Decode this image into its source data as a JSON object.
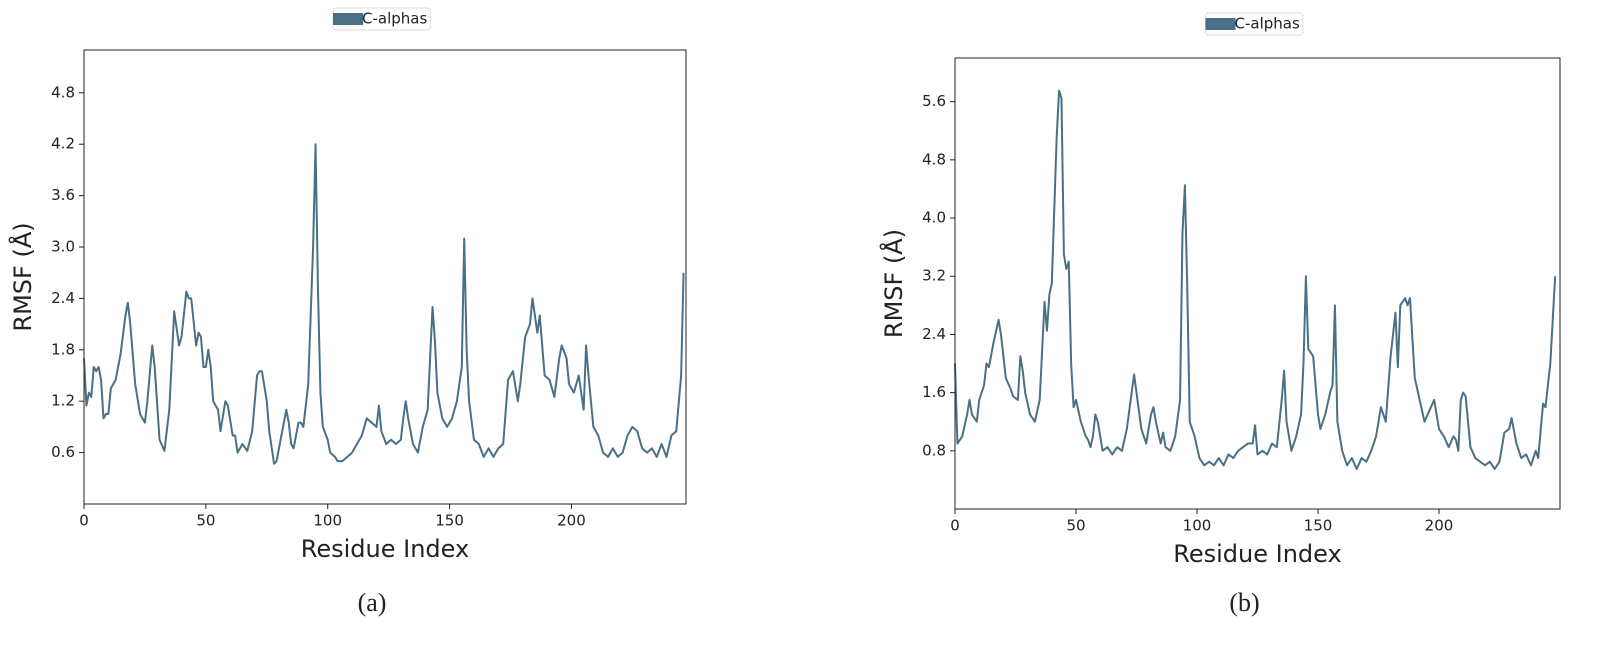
{
  "chart_data": [
    {
      "type": "line",
      "legend": "top",
      "caption": "(a)",
      "x_label": "Residue Index",
      "y_label": "RMSF (Å)",
      "xlim": [
        0,
        247
      ],
      "ylim": [
        0,
        5.3
      ],
      "xticks": [
        0,
        50,
        100,
        150,
        200
      ],
      "yticks": [
        0.6,
        1.2,
        1.8,
        2.4,
        {
          "value": 3,
          "label": "3.0"
        },
        3.6,
        4.2,
        4.8
      ],
      "x": [
        0,
        1,
        2,
        3,
        4,
        5,
        6,
        7,
        8,
        9,
        10,
        11,
        13,
        15,
        17,
        18,
        19,
        21,
        23,
        25,
        26,
        28,
        29,
        31,
        33,
        35,
        37,
        39,
        40,
        42,
        43,
        44,
        46,
        47,
        48,
        49,
        50,
        51,
        52,
        53,
        55,
        56,
        58,
        59,
        61,
        62,
        63,
        65,
        67,
        69,
        71,
        72,
        73,
        75,
        76,
        78,
        79,
        81,
        83,
        84,
        85,
        86,
        88,
        89,
        90,
        92,
        94,
        95,
        96,
        97,
        98,
        100,
        101,
        103,
        104,
        106,
        108,
        110,
        112,
        114,
        116,
        118,
        120,
        121,
        122,
        124,
        126,
        128,
        130,
        131,
        132,
        133,
        135,
        137,
        139,
        141,
        143,
        144,
        145,
        147,
        149,
        151,
        153,
        155,
        156,
        157,
        158,
        160,
        162,
        164,
        166,
        168,
        170,
        172,
        174,
        176,
        178,
        179,
        181,
        183,
        184,
        186,
        187,
        189,
        191,
        193,
        195,
        196,
        198,
        199,
        201,
        203,
        205,
        206,
        207,
        209,
        211,
        213,
        215,
        217,
        219,
        221,
        223,
        225,
        227,
        229,
        231,
        233,
        235,
        237,
        239,
        241,
        243,
        245,
        246
      ],
      "series": [
        {
          "name": "C-alphas",
          "color": "#4a7088",
          "values": [
            1.7,
            1.15,
            1.3,
            1.25,
            1.6,
            1.55,
            1.6,
            1.45,
            1.0,
            1.05,
            1.05,
            1.35,
            1.45,
            1.75,
            2.2,
            2.35,
            2.1,
            1.4,
            1.05,
            0.95,
            1.2,
            1.85,
            1.6,
            0.75,
            0.62,
            1.1,
            2.25,
            1.85,
            1.95,
            2.48,
            2.4,
            2.4,
            1.85,
            2.0,
            1.95,
            1.6,
            1.6,
            1.8,
            1.6,
            1.2,
            1.1,
            0.85,
            1.2,
            1.15,
            0.8,
            0.8,
            0.6,
            0.7,
            0.62,
            0.85,
            1.5,
            1.55,
            1.55,
            1.2,
            0.85,
            0.47,
            0.5,
            0.8,
            1.1,
            0.95,
            0.7,
            0.65,
            0.95,
            0.95,
            0.9,
            1.4,
            3.0,
            4.2,
            2.5,
            1.3,
            0.9,
            0.75,
            0.6,
            0.55,
            0.5,
            0.5,
            0.55,
            0.6,
            0.7,
            0.8,
            1.0,
            0.95,
            0.9,
            1.15,
            0.85,
            0.7,
            0.75,
            0.7,
            0.75,
            1.0,
            1.2,
            1.0,
            0.7,
            0.6,
            0.9,
            1.1,
            2.3,
            1.9,
            1.3,
            1.0,
            0.9,
            1.0,
            1.2,
            1.6,
            3.1,
            1.8,
            1.2,
            0.75,
            0.7,
            0.55,
            0.65,
            0.55,
            0.65,
            0.7,
            1.45,
            1.55,
            1.2,
            1.4,
            1.95,
            2.1,
            2.4,
            2.0,
            2.2,
            1.5,
            1.45,
            1.25,
            1.7,
            1.85,
            1.7,
            1.4,
            1.3,
            1.5,
            1.1,
            1.85,
            1.5,
            0.9,
            0.8,
            0.6,
            0.55,
            0.65,
            0.55,
            0.6,
            0.8,
            0.9,
            0.85,
            0.65,
            0.6,
            0.65,
            0.55,
            0.7,
            0.55,
            0.8,
            0.85,
            1.5,
            2.7
          ]
        }
      ]
    },
    {
      "type": "line",
      "legend": "top",
      "caption": "(b)",
      "x_label": "Residue Index",
      "y_label": "RMSF (Å)",
      "xlim": [
        0,
        250
      ],
      "ylim": [
        0,
        6.2
      ],
      "xticks": [
        0,
        50,
        100,
        150,
        200
      ],
      "yticks": [
        0.8,
        1.6,
        2.4,
        3.2,
        {
          "value": 4,
          "label": "4.0"
        },
        4.8,
        5.6
      ],
      "x": [
        0,
        1,
        3,
        5,
        6,
        7,
        9,
        10,
        12,
        13,
        14,
        16,
        18,
        19,
        21,
        23,
        24,
        26,
        27,
        28,
        29,
        31,
        33,
        35,
        37,
        38,
        39,
        40,
        42,
        43,
        44,
        45,
        46,
        47,
        48,
        49,
        50,
        52,
        54,
        55,
        56,
        57,
        58,
        59,
        61,
        63,
        65,
        67,
        69,
        71,
        73,
        74,
        75,
        77,
        79,
        81,
        82,
        83,
        85,
        86,
        87,
        89,
        91,
        93,
        94,
        95,
        96,
        97,
        99,
        101,
        103,
        105,
        107,
        109,
        111,
        113,
        115,
        117,
        119,
        121,
        123,
        124,
        125,
        127,
        129,
        131,
        133,
        135,
        136,
        137,
        139,
        141,
        143,
        144,
        145,
        146,
        148,
        150,
        151,
        153,
        155,
        156,
        157,
        158,
        160,
        162,
        164,
        166,
        168,
        170,
        172,
        174,
        176,
        178,
        180,
        182,
        183,
        184,
        186,
        187,
        188,
        190,
        192,
        194,
        196,
        198,
        200,
        202,
        204,
        206,
        207,
        208,
        209,
        210,
        211,
        213,
        215,
        217,
        219,
        221,
        223,
        225,
        227,
        229,
        230,
        232,
        234,
        236,
        238,
        240,
        241,
        243,
        244,
        246,
        248
      ],
      "series": [
        {
          "name": "C-alphas",
          "color": "#4a7088",
          "values": [
            2.0,
            0.9,
            1.0,
            1.3,
            1.5,
            1.3,
            1.2,
            1.5,
            1.7,
            2.0,
            1.95,
            2.3,
            2.6,
            2.4,
            1.8,
            1.65,
            1.55,
            1.5,
            2.1,
            1.9,
            1.6,
            1.3,
            1.2,
            1.5,
            2.85,
            2.45,
            2.95,
            3.1,
            5.1,
            5.75,
            5.65,
            3.5,
            3.3,
            3.4,
            2.0,
            1.4,
            1.5,
            1.2,
            1.0,
            0.95,
            0.85,
            1.0,
            1.3,
            1.2,
            0.8,
            0.85,
            0.75,
            0.85,
            0.8,
            1.1,
            1.6,
            1.85,
            1.6,
            1.1,
            0.9,
            1.3,
            1.4,
            1.2,
            0.9,
            1.05,
            0.85,
            0.8,
            1.0,
            1.5,
            3.8,
            4.45,
            3.0,
            1.2,
            1.0,
            0.7,
            0.6,
            0.65,
            0.6,
            0.7,
            0.6,
            0.75,
            0.7,
            0.8,
            0.85,
            0.9,
            0.9,
            1.15,
            0.75,
            0.8,
            0.75,
            0.9,
            0.85,
            1.5,
            1.9,
            1.2,
            0.8,
            1.0,
            1.3,
            2.0,
            3.2,
            2.2,
            2.1,
            1.3,
            1.1,
            1.3,
            1.6,
            1.7,
            2.8,
            1.2,
            0.8,
            0.6,
            0.7,
            0.55,
            0.7,
            0.65,
            0.8,
            1.0,
            1.4,
            1.2,
            2.1,
            2.7,
            1.95,
            2.8,
            2.9,
            2.8,
            2.9,
            1.8,
            1.5,
            1.2,
            1.35,
            1.5,
            1.1,
            1.0,
            0.85,
            1.0,
            0.95,
            0.8,
            1.5,
            1.6,
            1.55,
            0.85,
            0.7,
            0.65,
            0.6,
            0.65,
            0.55,
            0.65,
            1.05,
            1.1,
            1.25,
            0.9,
            0.7,
            0.75,
            0.6,
            0.8,
            0.7,
            1.45,
            1.4,
            2.0,
            3.2
          ]
        }
      ]
    }
  ]
}
